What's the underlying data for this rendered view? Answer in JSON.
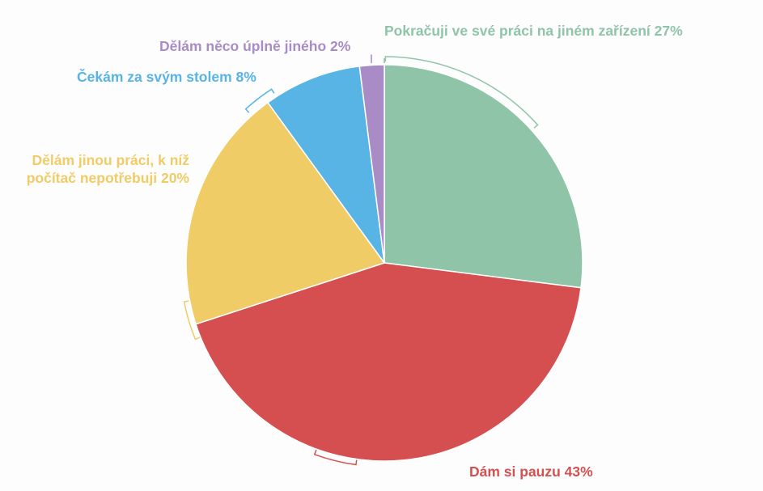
{
  "chart_data": {
    "type": "pie",
    "start_angle": "top",
    "direction": "clockwise",
    "slices": [
      {
        "label": "Pokračuji ve své práci na jiném zařízení 27%",
        "value": 27,
        "color": "#8fc4a9"
      },
      {
        "label": "Dám si pauzu 43%",
        "value": 43,
        "color": "#d64f50"
      },
      {
        "label_lines": [
          "Dělám jinou práci, k níž",
          "počítač nepotřebuji 20%"
        ],
        "value": 20,
        "color": "#efcc66"
      },
      {
        "label": "Čekám za svým stolem 8%",
        "value": 8,
        "color": "#58b4e4"
      },
      {
        "label": "Dělám něco úplně jiného 2%",
        "value": 2,
        "color": "#a98bc6"
      }
    ],
    "legend": "none"
  }
}
